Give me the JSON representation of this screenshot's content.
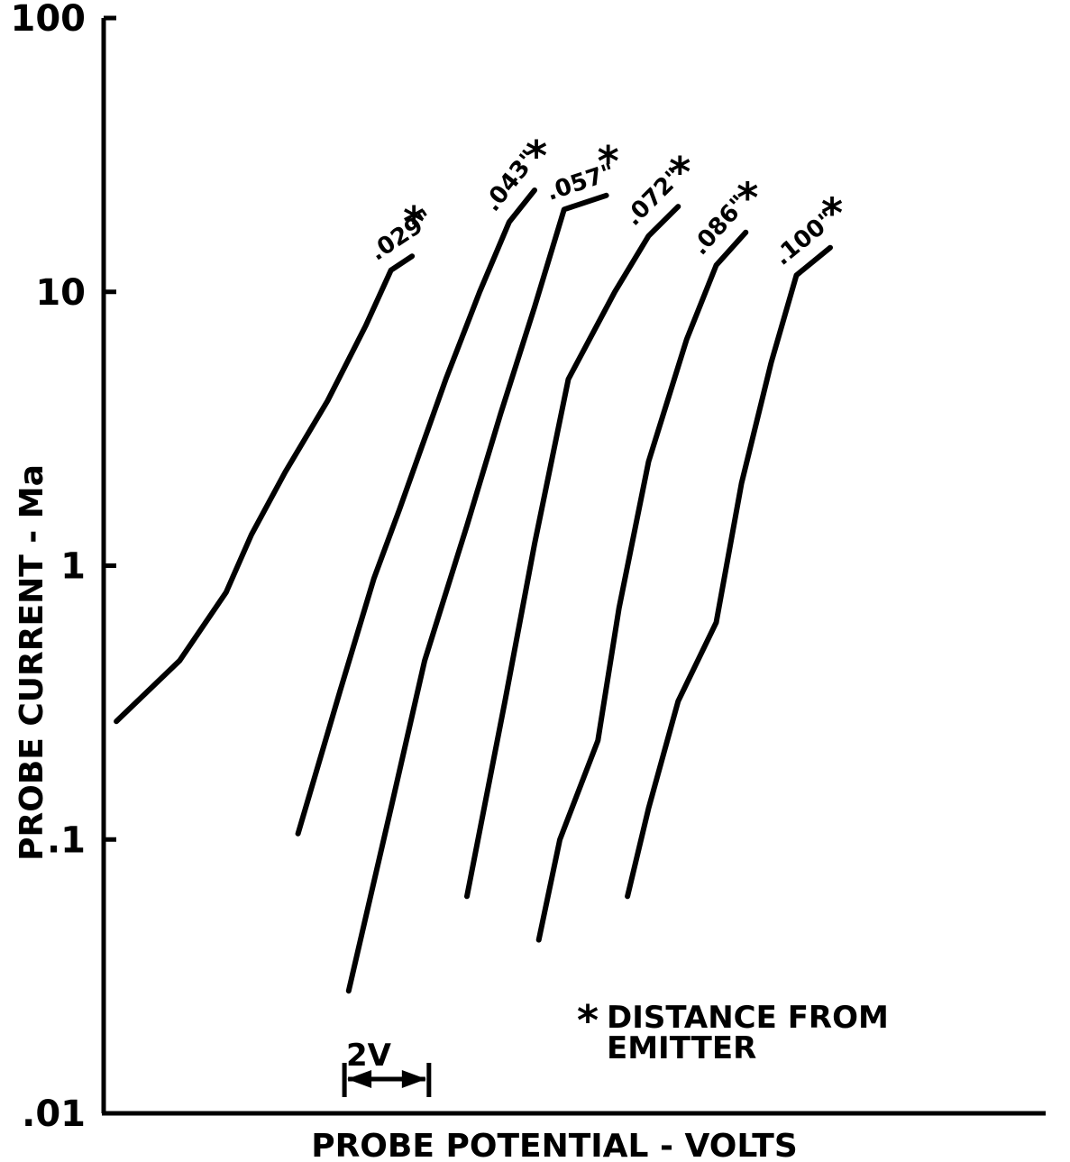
{
  "chart_data": {
    "type": "line",
    "title": "",
    "xlabel": "PROBE POTENTIAL - VOLTS",
    "ylabel": "PROBE CURRENT - Ma",
    "yscale": "log",
    "ylim": [
      0.01,
      100
    ],
    "y_ticks": [
      {
        "value": 0.01,
        "label": ".01"
      },
      {
        "value": 0.1,
        "label": ".1"
      },
      {
        "value": 1,
        "label": "1"
      },
      {
        "value": 10,
        "label": "10"
      },
      {
        "value": 100,
        "label": "100"
      }
    ],
    "x_units": "V",
    "xlim": [
      0,
      22.3
    ],
    "scale_bar": {
      "label": "2V",
      "start": 5.7,
      "end": 7.7
    },
    "annotation": {
      "line1": "DISTANCE FROM",
      "line2": "EMITTER",
      "marker": "*"
    },
    "grid": false,
    "series": [
      {
        "name": ".029\"",
        "marker": "*",
        "x": [
          0.3,
          1.8,
          2.9,
          3.5,
          4.3,
          5.3,
          6.2,
          6.8,
          7.3
        ],
        "y": [
          0.27,
          0.45,
          0.8,
          1.3,
          2.2,
          4.0,
          7.5,
          12.0,
          13.5
        ]
      },
      {
        "name": ".043\"",
        "marker": "*",
        "x": [
          4.6,
          5.6,
          6.4,
          7.0,
          8.1,
          8.9,
          9.6,
          10.2
        ],
        "y": [
          0.105,
          0.35,
          0.9,
          1.6,
          4.8,
          10.0,
          18.0,
          23.5
        ]
      },
      {
        "name": ".057\"",
        "marker": "*",
        "x": [
          5.8,
          6.8,
          7.6,
          8.6,
          9.4,
          10.2,
          10.9,
          11.9
        ],
        "y": [
          0.028,
          0.13,
          0.45,
          1.4,
          3.6,
          8.8,
          20.0,
          22.5
        ]
      },
      {
        "name": ".072\"",
        "marker": "*",
        "x": [
          8.6,
          9.5,
          10.2,
          11.0,
          12.1,
          12.9,
          13.6
        ],
        "y": [
          0.062,
          0.32,
          1.2,
          4.8,
          10.0,
          16.0,
          20.5
        ]
      },
      {
        "name": ".086\"",
        "marker": "*",
        "x": [
          10.3,
          10.8,
          11.7,
          12.2,
          12.9,
          13.8,
          14.5,
          15.2
        ],
        "y": [
          0.043,
          0.1,
          0.23,
          0.7,
          2.4,
          6.7,
          12.5,
          16.5
        ]
      },
      {
        "name": ".100\"",
        "marker": "*",
        "x": [
          12.4,
          12.9,
          13.6,
          14.5,
          15.1,
          15.8,
          16.4,
          17.2
        ],
        "y": [
          0.062,
          0.13,
          0.32,
          0.62,
          2.0,
          5.5,
          11.5,
          14.5
        ]
      }
    ]
  }
}
